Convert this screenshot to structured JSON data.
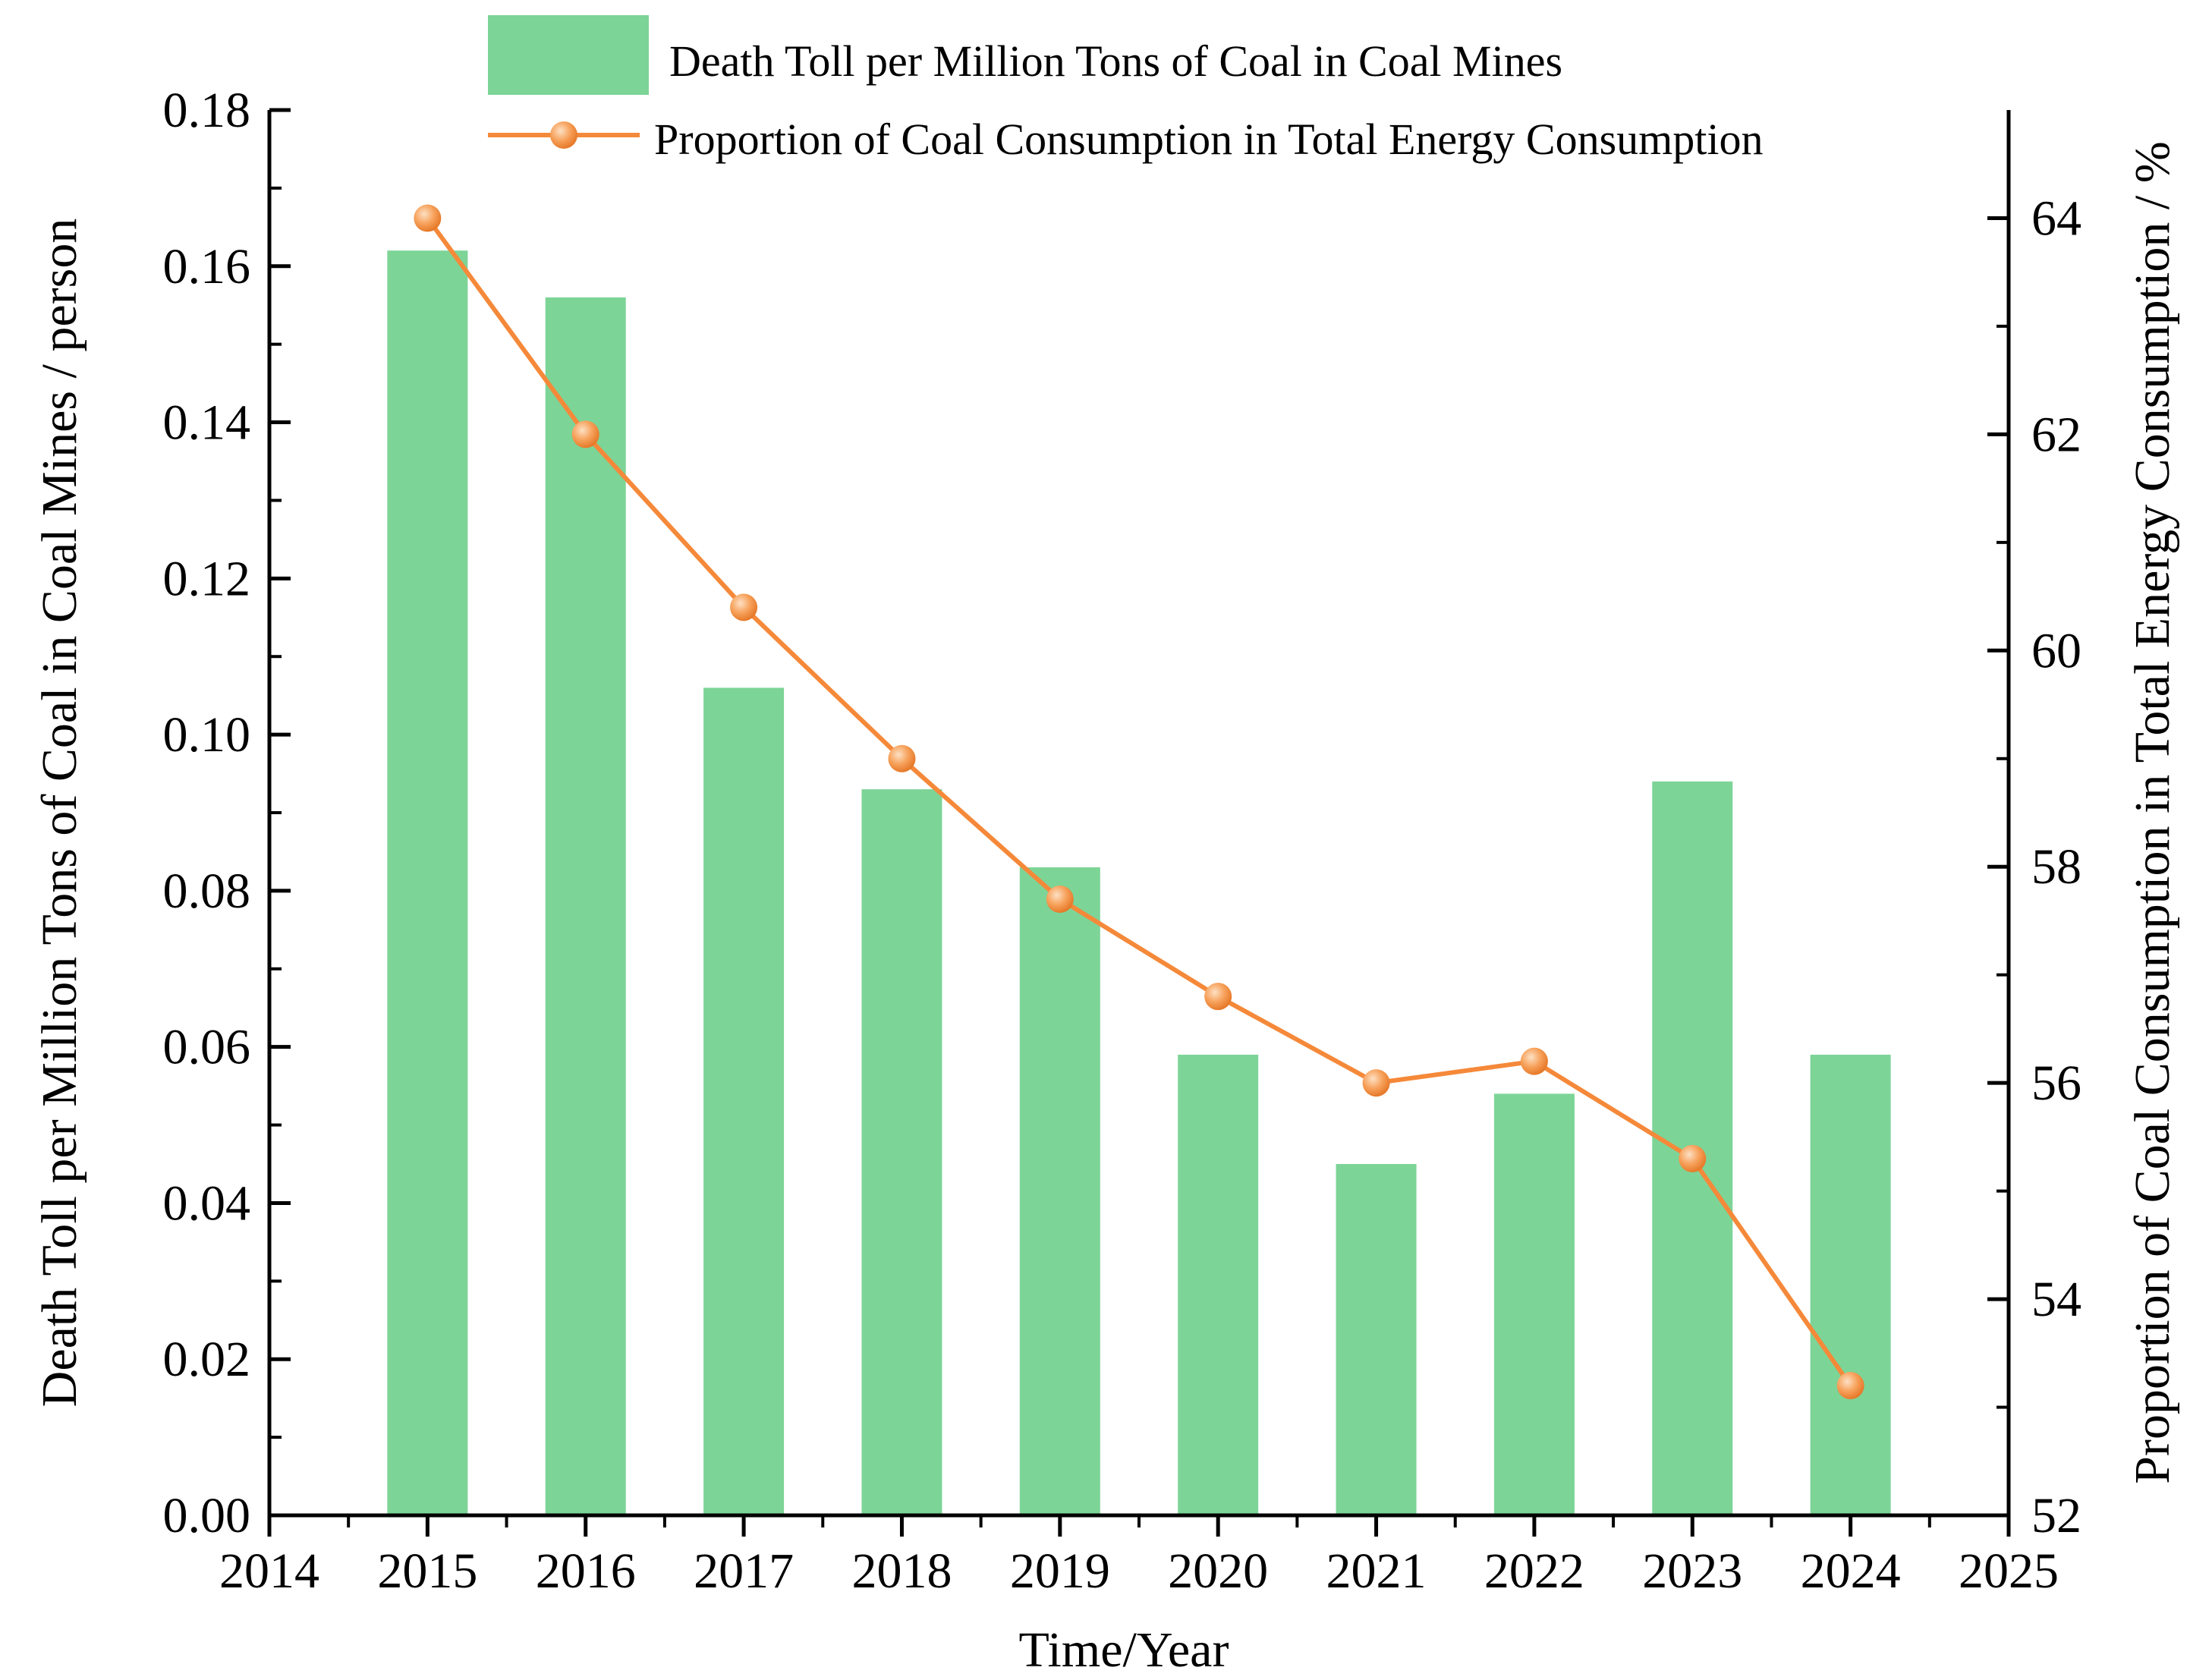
{
  "chart_data": {
    "type": "bar+line",
    "title": "",
    "xlabel": "Time/Year",
    "ylabel_left": "Death Toll per Million Tons of Coal in Coal Mines / person",
    "ylabel_right": "Proportion of Coal Consumption in Total Energy Consumption / %",
    "x_ticks": [
      "2014",
      "2015",
      "2016",
      "2017",
      "2018",
      "2019",
      "2020",
      "2021",
      "2022",
      "2023",
      "2024",
      "2025"
    ],
    "xlim": [
      2014,
      2025
    ],
    "y_left_ticks": [
      "0.00",
      "0.02",
      "0.04",
      "0.06",
      "0.08",
      "0.10",
      "0.12",
      "0.14",
      "0.16",
      "0.18"
    ],
    "y_left_lim": [
      0,
      0.18
    ],
    "y_right_ticks": [
      "52",
      "54",
      "56",
      "58",
      "60",
      "62",
      "64"
    ],
    "y_right_lim": [
      52,
      65
    ],
    "categories": [
      2015,
      2016,
      2017,
      2018,
      2019,
      2020,
      2021,
      2022,
      2023,
      2024
    ],
    "series": [
      {
        "name": "Death Toll per Million Tons of Coal in Coal Mines",
        "type": "bar",
        "axis": "left",
        "color": "#7dd497",
        "values": [
          0.162,
          0.156,
          0.106,
          0.093,
          0.083,
          0.059,
          0.045,
          0.054,
          0.094,
          0.059
        ]
      },
      {
        "name": "Proportion of Coal Consumption in Total Energy Consumption",
        "type": "line",
        "axis": "right",
        "color": "#f5893a",
        "marker_color": "#f7a25c",
        "values": [
          64.0,
          62.0,
          60.4,
          59.0,
          57.7,
          56.8,
          56.0,
          56.2,
          55.3,
          53.2
        ]
      }
    ],
    "legend_position": "top"
  }
}
